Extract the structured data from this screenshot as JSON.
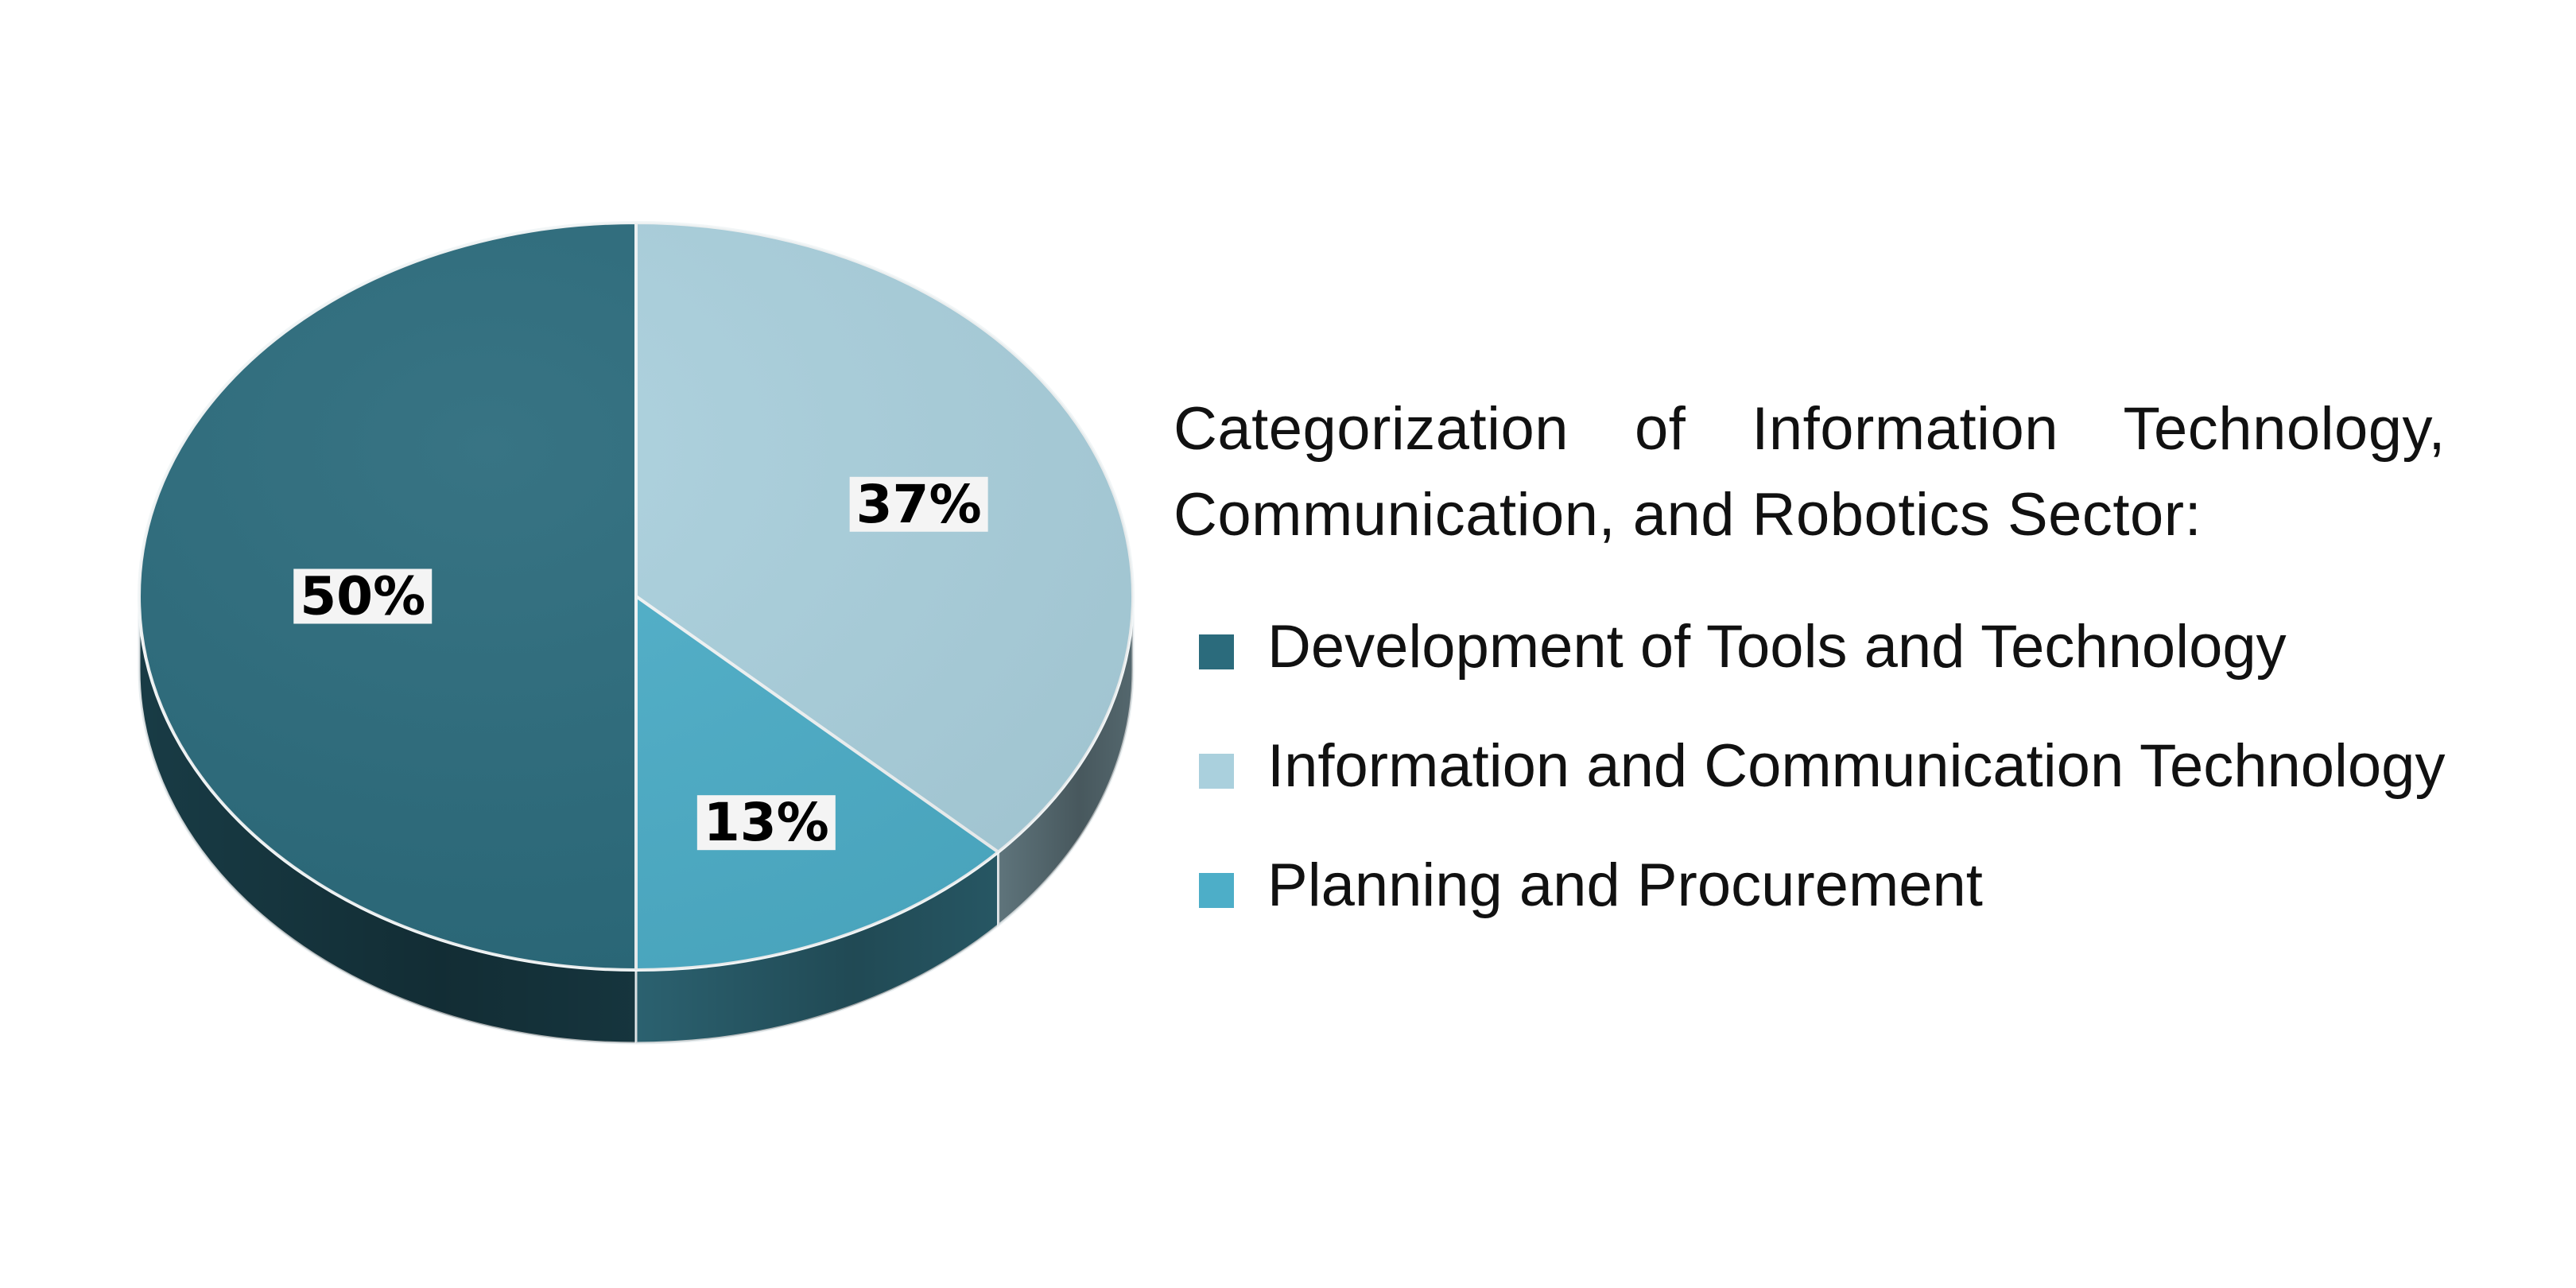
{
  "chart_data": {
    "type": "pie",
    "title": "Categorization of Information Technology, Communication, and Robotics Sector:",
    "slices": [
      {
        "label": "Development of Tools and Technology",
        "value": 50,
        "display": "50%",
        "color": "#2b6b7c"
      },
      {
        "label": "Information and Communication Technology",
        "value": 37,
        "display": "37%",
        "color": "#aad0dd"
      },
      {
        "label": "Planning and Procurement",
        "value": 13,
        "display": "13%",
        "color": "#4daec8"
      }
    ],
    "legend_position": "right",
    "style": "3d"
  }
}
